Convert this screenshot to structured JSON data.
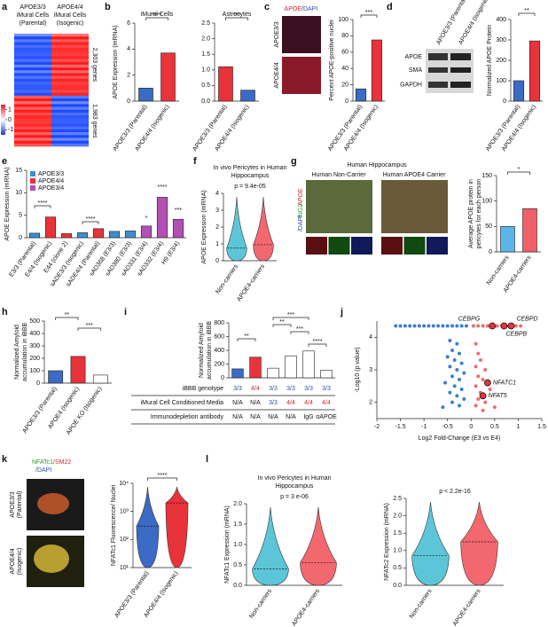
{
  "panel_letters": [
    "a",
    "b",
    "c",
    "d",
    "e",
    "f",
    "g",
    "h",
    "i",
    "j",
    "k",
    "l"
  ],
  "image_labels": {
    "c": {
      "stain": [
        "APOE",
        "/DAPI"
      ],
      "rows": [
        "APOE3/3",
        "APOE4/4"
      ]
    },
    "d": {
      "rows": [
        "APOE",
        "SMA",
        "GAPDH"
      ],
      "columns": [
        "APOE3/3 (Parental)",
        "APOE4/4 (Isogenic)"
      ]
    },
    "g": {
      "header": "Human Hippocampus",
      "columns": [
        "Human Non-Carrier",
        "Human APOE4 Carrier"
      ],
      "stain": [
        "APOE",
        "/NG2",
        "/DAPI"
      ]
    },
    "k": {
      "stain": [
        "NFATc1",
        "/SM22",
        "/DAPI"
      ],
      "rows": [
        [
          "APOE3/3",
          "(Parental)"
        ],
        [
          "APOE4/4",
          "(Isogenic)"
        ]
      ]
    }
  },
  "chart_data": [
    {
      "type": "heatmap",
      "columns": [
        [
          "APOE3/3",
          "iMural Cells",
          "(Parental)"
        ],
        [
          "APOE4/4",
          "iMural Cells",
          "(Isogenic)"
        ]
      ],
      "row_labels": [
        "2,303 genes",
        "1,983 genes"
      ],
      "clim": [
        -1.5,
        1.5
      ],
      "colorbar_ticks": [
        1,
        0,
        -1
      ]
    },
    {
      "type": "bar",
      "title": "iMural Cells",
      "ylabel": "APOE Expression (mRNA)",
      "categories": [
        "APOE3/3 (Parental)",
        "APOE4/4 (Isogenic)"
      ],
      "values": [
        1.0,
        3.7
      ],
      "colors": [
        "#3b6bc4",
        "#e8333a"
      ],
      "ylim": [
        0,
        6
      ],
      "yticks": [
        0,
        2,
        4,
        6
      ],
      "significance": [
        "****"
      ]
    },
    {
      "type": "bar",
      "title": "Astrocytes",
      "categories": [
        "APOE3/3 (Parental)",
        "APOE4/4 (Isogenic)"
      ],
      "values": [
        1.1,
        0.35
      ],
      "colors": [
        "#e8333a",
        "#3b6bc4"
      ],
      "ylim": [
        0,
        2.5
      ],
      "yticks": [
        {
          "value": 0,
          "label": "0.0"
        },
        0.5,
        {
          "value": 1,
          "label": "1.0"
        },
        1.5,
        {
          "value": 2,
          "label": "2.0"
        },
        2.5
      ],
      "significance": [
        "***"
      ]
    },
    {
      "type": "bar",
      "ylabel": "Percent APOE-positive nuclei",
      "categories": [
        "APOE3/3 (Parental)",
        "APOE4/4 (Isogenic)"
      ],
      "values": [
        15,
        75
      ],
      "colors": [
        "#3b6bc4",
        "#e8333a"
      ],
      "ylim": [
        0,
        100
      ],
      "yticks": [
        0,
        20,
        40,
        60,
        80,
        100
      ],
      "significance": [
        "***"
      ]
    },
    {
      "type": "bar",
      "ylabel": "Normalized APOE Protein",
      "categories": [
        "APOE3/3 (Parental)",
        "APOE4/4 (Isogenic)"
      ],
      "values": [
        100,
        295
      ],
      "colors": [
        "#3b6bc4",
        "#e8333a"
      ],
      "ylim": [
        0,
        400
      ],
      "yticks": [
        0,
        100,
        200,
        300,
        400
      ],
      "significance": [
        "**"
      ]
    },
    {
      "type": "bar",
      "ylabel": "APOE Expression (mRNA)",
      "categories": [
        "E3/3 (Parental)",
        "E4/4 (Isogenic)",
        "E44 (clone 2)",
        "sADE3/3 (Isogenic)",
        "sADE4/4 (Parental)",
        "sAD368 (E3/3)",
        "sAD380 (E3/3)",
        "sAD331 (E3/4)",
        "sAD332 (E3/4)",
        "H9 (E3/4)"
      ],
      "series": [
        {
          "name": "APOE3/3",
          "color": "#3b8fd0",
          "values": [
            1.0,
            null,
            null,
            1.1,
            null,
            1.4,
            1.5,
            null,
            null,
            null
          ]
        },
        {
          "name": "APOE4/4",
          "color": "#e8333a",
          "values": [
            null,
            4.6,
            0.9,
            null,
            2.0,
            null,
            null,
            null,
            null,
            null
          ]
        },
        {
          "name": "APOE3/4",
          "color": "#b44fb4",
          "values": [
            null,
            null,
            null,
            null,
            null,
            null,
            null,
            2.6,
            9.0,
            4.1
          ]
        }
      ],
      "ylim": [
        0,
        15
      ],
      "yticks": [
        0,
        5,
        10,
        15
      ],
      "significance": [
        "****",
        "****",
        "*",
        "****",
        "***"
      ]
    },
    {
      "type": "violin",
      "title": [
        "In vivo Pericytes in Human",
        "Hippocampus"
      ],
      "pvalue": "p = 9.4e-05",
      "ylabel": "APOE Expression (mRNA)",
      "categories": [
        "Non-carriers",
        "APOE4-carriers"
      ],
      "medians": [
        0.75,
        0.95
      ],
      "colors": [
        "#5cc6d8",
        "#f2686e"
      ],
      "ylim": [
        0,
        4
      ],
      "yticks": [
        0,
        1,
        2,
        3,
        4
      ]
    },
    {
      "type": "bar",
      "ylabel": [
        "Average APOE protein in",
        "pericytes for each person"
      ],
      "categories": [
        "Non-carriers",
        "APOE4-carriers"
      ],
      "values": [
        50,
        85
      ],
      "colors": [
        "#5ab6e8",
        "#f0606a"
      ],
      "ylim": [
        0,
        150
      ],
      "yticks": [
        0,
        50,
        100,
        150
      ],
      "significance": [
        "*"
      ]
    },
    {
      "type": "bar",
      "ylabel": [
        "Normalized Amyloid",
        "accumulation in iBBB"
      ],
      "categories": [
        "APOE3/3 (Parental)",
        "APOE4 (Isogenic)",
        "APOE KO (Isogenic)"
      ],
      "values": [
        100,
        215,
        65
      ],
      "colors": [
        "#3b6bc4",
        "#e8333a",
        "#ffffff"
      ],
      "ylim": [
        0,
        500
      ],
      "yticks": [
        0,
        100,
        200,
        300,
        400,
        500
      ],
      "significance": [
        "**",
        "***"
      ]
    },
    {
      "type": "bar",
      "ylabel": [
        "Normalized Amyloid",
        "accumulation in iBBB"
      ],
      "values": [
        130,
        300,
        140,
        320,
        390,
        110
      ],
      "colors": [
        "#3b6bc4",
        "#e8333a",
        "#ffffff",
        "#ffffff",
        "#ffffff",
        "#ffffff"
      ],
      "ylim": [
        0,
        800
      ],
      "yticks": [
        0,
        200,
        400,
        600,
        800
      ],
      "significance": [
        "**",
        "***",
        "**",
        "***",
        "****"
      ],
      "table": [
        {
          "label": "iBBB genotype",
          "cells": [
            "3/3",
            "4/4",
            "3/3",
            "3/3",
            "3/3",
            "3/3"
          ],
          "cell_colors": [
            "#2b4fa8",
            "#d8252d",
            "#2b4fa8",
            "#2b4fa8",
            "#2b4fa8",
            "#2b4fa8"
          ]
        },
        {
          "label": "iMural Cell Conditioned Media",
          "cells": [
            "N/A",
            "N/A",
            "3/3",
            "4/4",
            "4/4",
            "4/4"
          ],
          "cell_colors": [
            "#111111",
            "#111111",
            "#2b4fa8",
            "#d8252d",
            "#d8252d",
            "#d8252d"
          ]
        },
        {
          "label": "Immunodepletion antibody",
          "cells": [
            "N/A",
            "N/A",
            "N/A",
            "N/A",
            "IgG",
            "αAPOE"
          ],
          "cell_colors": [
            "#111111",
            "#111111",
            "#111111",
            "#111111",
            "#111111",
            "#111111"
          ]
        }
      ]
    },
    {
      "type": "scatter",
      "ylabel": "-Log10 (p value)",
      "xlabel": "Log2 Fold-Change (E3 vs E4)",
      "xlim": [
        -2,
        1.5
      ],
      "xticks": [
        -2,
        -1.5,
        -1,
        -0.5,
        0,
        0.5,
        1,
        1.5
      ],
      "ylim": [
        1.5,
        4.5
      ],
      "yticks": [
        2,
        3,
        4
      ],
      "series": [
        {
          "color": "#3b7fd0",
          "x": [
            -1.6,
            -1.5,
            -1.4,
            -1.3,
            -1.2,
            -1.1,
            -1.0,
            -0.9,
            -0.8,
            -0.7,
            -0.6,
            -0.5,
            -0.4,
            -0.3,
            -0.2,
            -0.1,
            -0.45,
            -0.3,
            -0.4,
            -0.25,
            -0.5,
            -0.35,
            -0.2,
            -0.45,
            -0.3,
            -0.15,
            -0.4,
            -0.25,
            -0.55,
            -0.35,
            -0.2,
            -0.45,
            -0.3,
            -0.15,
            -0.4,
            -0.25,
            -0.6
          ],
          "y": [
            4.35,
            4.35,
            4.35,
            4.35,
            4.35,
            4.35,
            4.35,
            4.35,
            4.35,
            4.35,
            4.35,
            4.35,
            4.35,
            4.35,
            4.35,
            4.35,
            3.9,
            3.8,
            3.6,
            3.5,
            3.4,
            3.3,
            3.2,
            3.1,
            3.0,
            2.9,
            2.8,
            2.7,
            2.6,
            2.5,
            2.4,
            2.3,
            2.2,
            2.1,
            2.0,
            1.9,
            1.85
          ]
        },
        {
          "color": "#f06a72",
          "x": [
            0.05,
            0.15,
            0.25,
            0.35,
            0.55,
            0.65,
            0.75,
            0.95,
            1.05,
            0.1,
            0.15,
            0.2,
            0.1,
            0.3,
            0.15,
            0.25,
            0.1,
            0.4,
            0.2,
            0.15,
            0.3,
            0.1,
            0.5,
            0.25
          ],
          "y": [
            4.35,
            4.35,
            4.35,
            4.35,
            4.35,
            4.35,
            4.35,
            4.35,
            4.35,
            3.8,
            3.5,
            3.3,
            3.1,
            3.0,
            2.8,
            2.7,
            2.5,
            2.4,
            2.3,
            2.1,
            2.0,
            1.9,
            1.85,
            1.75
          ]
        }
      ],
      "highlight": {
        "labels": [
          "CEBPG",
          "CEBPD",
          "CEBPB",
          "NFATC1",
          "NFAT5"
        ],
        "x": [
          0.45,
          0.85,
          0.7,
          0.35,
          0.25
        ],
        "y": [
          4.35,
          4.35,
          4.35,
          2.6,
          2.2
        ],
        "color": "#e8333a"
      }
    },
    {
      "type": "violin",
      "log": true,
      "ylabel": "NFATc1 Fluorescence/ Nuclei",
      "categories": [
        "APOE3/3 (Parental)",
        "APOE4/4 (Isogenic)"
      ],
      "medians": [
        300,
        2000
      ],
      "colors": [
        "#3b6bc4",
        "#e8333a"
      ],
      "ylim": [
        10,
        10000
      ],
      "yticks": [
        {
          "value": 10,
          "label": "10¹"
        },
        {
          "value": 100,
          "label": "10²"
        },
        {
          "value": 1000,
          "label": "10³"
        },
        {
          "value": 10000,
          "label": "10⁴"
        }
      ],
      "significance": [
        "****"
      ]
    },
    {
      "type": "violin",
      "title": [
        "In vivo Pericytes in Human",
        "Hippocampus"
      ],
      "pvalue": "p = 3 e-06",
      "ylabel": "NFATc1 Expression (mRNA)",
      "categories": [
        "Non-carriers",
        "APOE4-carriers"
      ],
      "medians": [
        0.4,
        0.55
      ],
      "colors": [
        "#5cc6d8",
        "#f2686e"
      ],
      "ylim": [
        0,
        2
      ],
      "yticks": [
        {
          "value": 0,
          "label": "0.0"
        },
        0.5,
        {
          "value": 1,
          "label": "1.0"
        },
        1.5,
        {
          "value": 2,
          "label": "2.0"
        }
      ]
    },
    {
      "type": "violin",
      "pvalue": "p < 2.2e-16",
      "ylabel": "NFATc2 Expression (mRNA)",
      "categories": [
        "Non-carriers",
        "APOE4-carriers"
      ],
      "medians": [
        0.85,
        1.25
      ],
      "colors": [
        "#5cc6d8",
        "#f2686e"
      ],
      "ylim": [
        0,
        2.5
      ],
      "yticks": [
        {
          "value": 0,
          "label": "0.0"
        },
        0.5,
        {
          "value": 1,
          "label": "1.0"
        },
        1.5,
        {
          "value": 2,
          "label": "2.0"
        },
        2.5
      ]
    }
  ]
}
